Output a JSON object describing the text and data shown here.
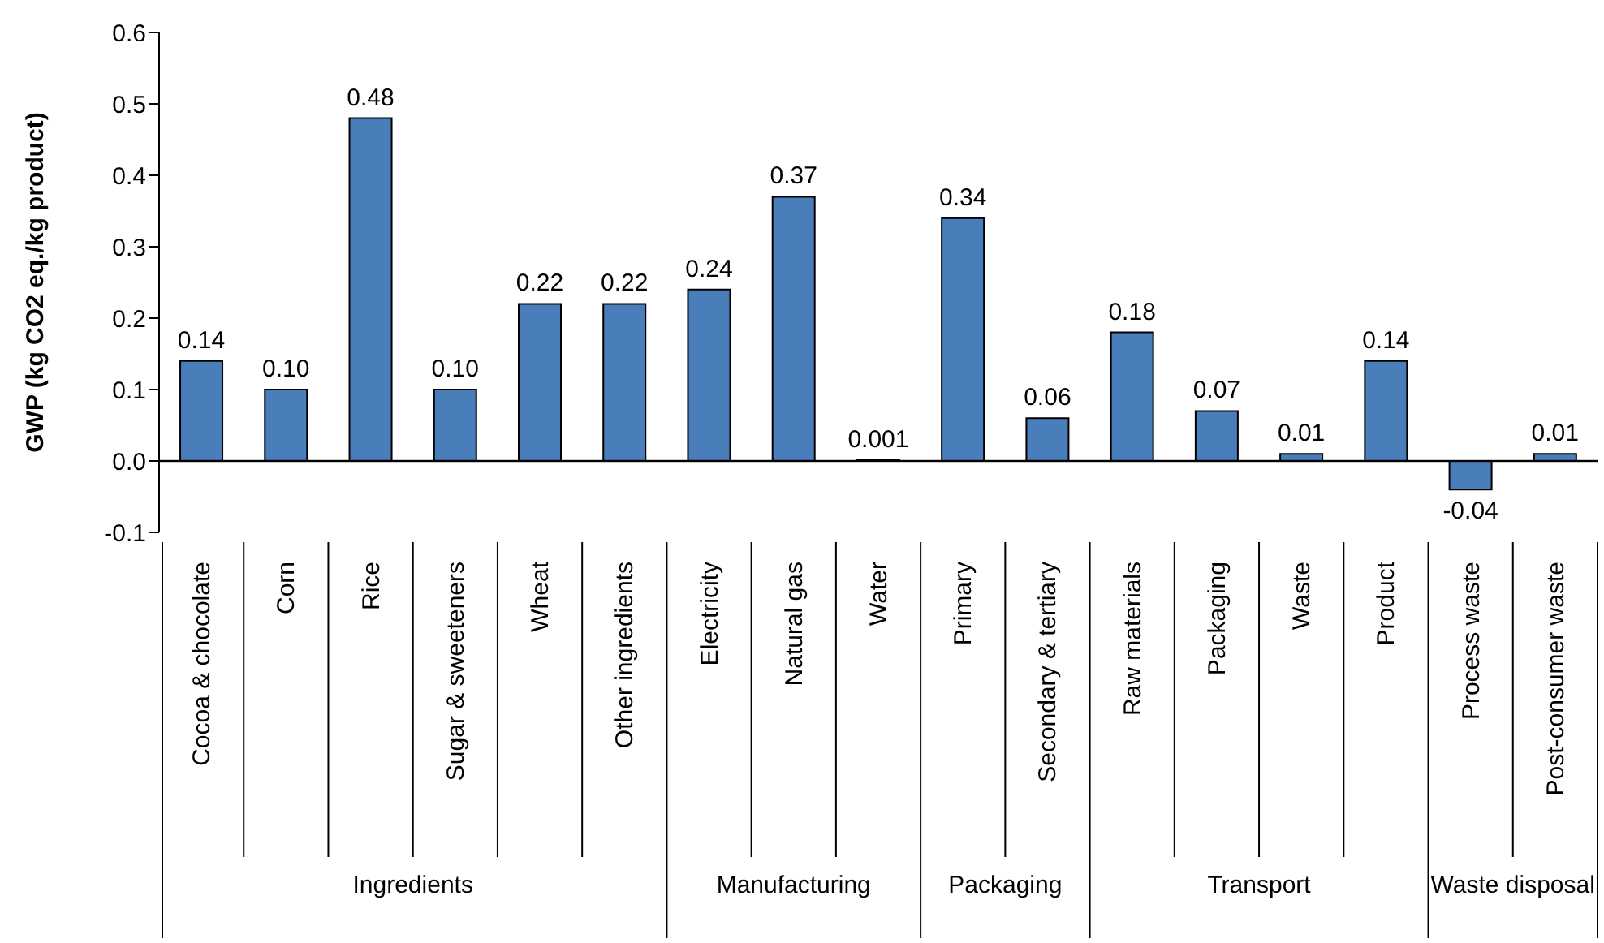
{
  "chart_data": {
    "type": "bar",
    "ylabel": "GWP (kg CO2 eq./kg product)",
    "categories": [
      "Cocoa & chocolate",
      "Corn",
      "Rice",
      "Sugar & sweeteners",
      "Wheat",
      "Other ingredients",
      "Electricity",
      "Natural gas",
      "Water",
      "Primary",
      "Secondary & tertiary",
      "Raw materials",
      "Packaging",
      "Waste",
      "Product",
      "Process waste",
      "Post-consumer waste"
    ],
    "values": [
      0.14,
      0.1,
      0.48,
      0.1,
      0.22,
      0.22,
      0.24,
      0.37,
      0.001,
      0.34,
      0.06,
      0.18,
      0.07,
      0.01,
      0.14,
      -0.04,
      0.01
    ],
    "value_labels": [
      "0.14",
      "0.10",
      "0.48",
      "0.10",
      "0.22",
      "0.22",
      "0.24",
      "0.37",
      "0.001",
      "0.34",
      "0.06",
      "0.18",
      "0.07",
      "0.01",
      "0.14",
      "-0.04",
      "0.01"
    ],
    "color": "#4a7ebb",
    "ylim": [
      -0.1,
      0.6
    ],
    "yticks": [
      {
        "value": -0.1,
        "label": "-0.1"
      },
      {
        "value": 0,
        "label": "0.0"
      },
      0.1,
      0.2,
      0.3,
      0.4,
      0.5,
      0.6
    ],
    "annotations": [
      "Ingredients",
      "Manufacturing",
      "Packaging",
      "Transport",
      "Waste disposal"
    ],
    "grid": false,
    "legend": false
  }
}
